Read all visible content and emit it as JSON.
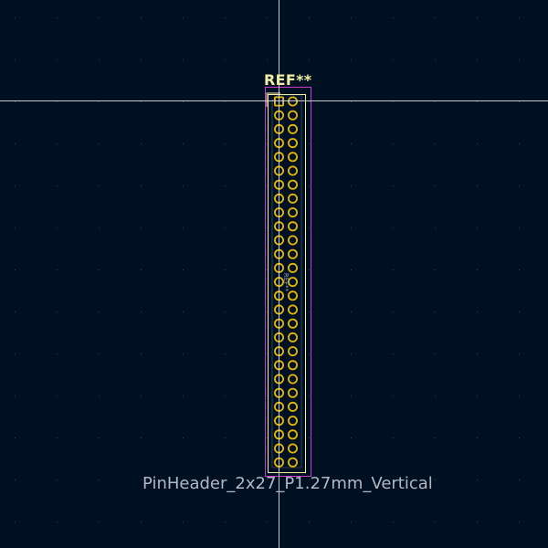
{
  "footprint": {
    "reference": "REF**",
    "value": "PinHeader_2x27_P1.27mm_Vertical",
    "fab_reference": "REF**",
    "columns": 2,
    "rows": 27
  },
  "colors": {
    "background": "#001023",
    "grid_dot": "#39424f",
    "crosshair": "#e8e8e8",
    "courtyard": "#c83cd0",
    "silkscreen": "#f2eda1",
    "pad": "#e6b800",
    "fab_text": "#9aa0b0",
    "value_text": "#b4b8c4",
    "fab_outline": "#b0b0b0"
  },
  "icons": {
    "pad_shape": "ring-circle"
  }
}
